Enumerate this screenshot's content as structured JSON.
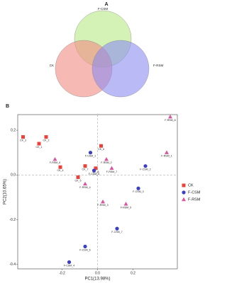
{
  "chart_data": [
    {
      "type": "venn",
      "panel": "A",
      "sets": [
        {
          "name": "F-CSM",
          "color": "#b8e986"
        },
        {
          "name": "CK",
          "color": "#f28b82"
        },
        {
          "name": "F-RSM",
          "color": "#8c8cf0"
        }
      ]
    },
    {
      "type": "scatter",
      "panel": "B",
      "xlabel": "PC1(13.98%)",
      "ylabel": "PC2(10.65%)",
      "xlim": [
        -0.45,
        0.45
      ],
      "ylim": [
        -0.42,
        0.27
      ],
      "xticks": [
        -0.2,
        {
          "value": 0,
          "label": "0.0"
        },
        0.2
      ],
      "yticks": [
        -0.4,
        -0.2,
        {
          "value": 0,
          "label": "0.0"
        },
        0.2
      ],
      "zero_lines": true,
      "legend": "right",
      "series": [
        {
          "name": "CK",
          "color": "#e8423a",
          "marker": "square",
          "labels": [
            "CK_3",
            "CK_1",
            "CK_2",
            "CK_4",
            "CK_5",
            "CK_6",
            "CK_7",
            "CK_8"
          ],
          "x": [
            -0.42,
            -0.33,
            -0.29,
            -0.21,
            -0.11,
            0.02,
            -0.07,
            -0.01
          ],
          "values": [
            0.17,
            0.14,
            0.17,
            0.035,
            -0.01,
            0.13,
            0.04,
            0.03
          ]
        },
        {
          "name": "F-CSM",
          "color": "#3b3fc4",
          "marker": "circle",
          "labels": [
            "F-CSM_1",
            "F-CSM_5",
            "F-CSM_2",
            "F-CSM_3",
            "F-CSM_7",
            "F-CSM_6",
            "F-CSM_4"
          ],
          "x": [
            -0.04,
            -0.02,
            0.27,
            0.23,
            0.11,
            -0.07,
            -0.16
          ],
          "values": [
            0.1,
            0.02,
            0.04,
            -0.06,
            -0.24,
            -0.32,
            -0.39
          ]
        },
        {
          "name": "F-RSM",
          "color": "#d9559f",
          "marker": "triangle",
          "labels": [
            "F-RSM_8",
            "F-RSM_1",
            "F-RSM_6",
            "F-RSM_2",
            "F-RSM_7",
            "F-RSM_4",
            "F-RSM_3",
            "F-RSM_5"
          ],
          "x": [
            0.41,
            0.39,
            -0.24,
            0.05,
            0.08,
            -0.07,
            0.03,
            0.16
          ],
          "values": [
            0.26,
            0.1,
            0.07,
            0.07,
            0.03,
            -0.04,
            -0.12,
            -0.13
          ]
        }
      ]
    }
  ]
}
